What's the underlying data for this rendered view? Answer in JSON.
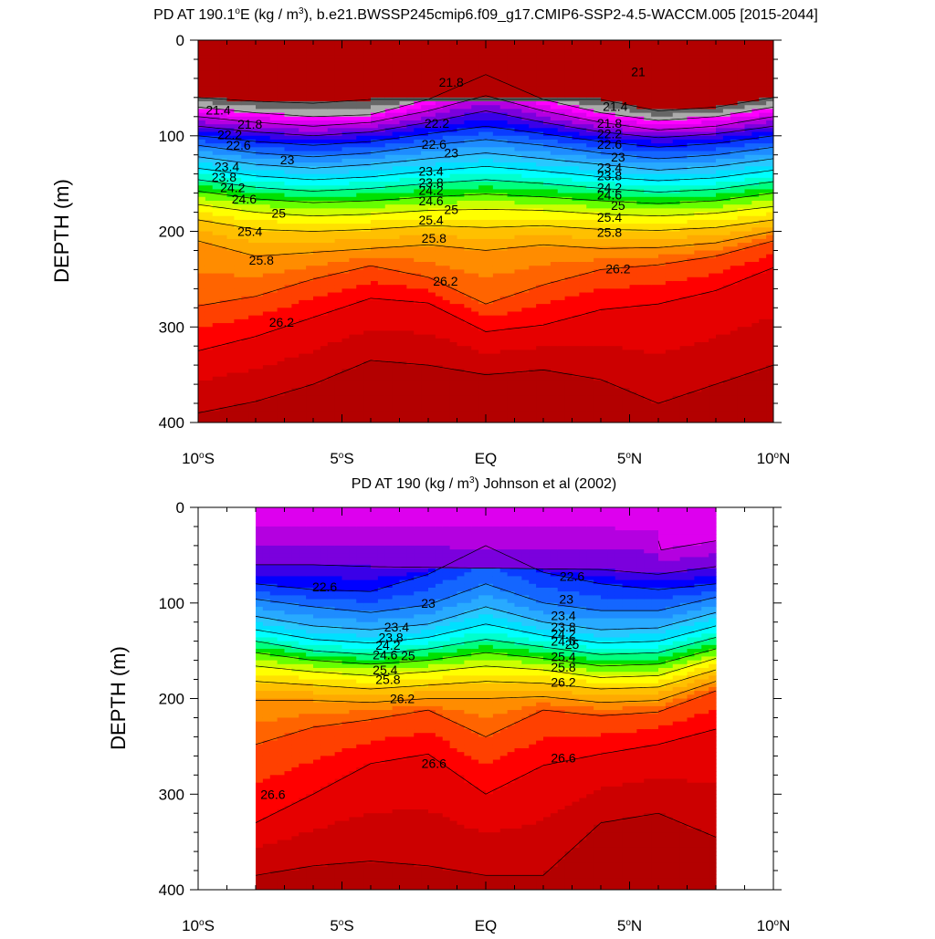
{
  "chart_data": [
    {
      "type": "contour",
      "title": "PD AT 190.1°E (kg / m³), b.e21.BWSSP245cmip6.f09_g17.CMIP6-SSP2-4.5-WACCM.005 [2015-2044]",
      "title_parts": {
        "pre": "PD AT 190.1",
        "deg": "o",
        "mid": "E (kg / m",
        "sup": "3",
        "post": "), b.e21.BWSSP245cmip6.f09_g17.CMIP6-SSP2-4.5-WACCM.005 [2015-2044]"
      },
      "xlabel": "",
      "ylabel": "DEPTH (m)",
      "xlim": [
        -10,
        10
      ],
      "ylim": [
        400,
        0
      ],
      "x_ticks": [
        {
          "value": -10,
          "num": "10",
          "hemi": "S"
        },
        {
          "value": -5,
          "num": "5",
          "hemi": "S"
        },
        {
          "value": 0,
          "num": "EQ",
          "hemi": ""
        },
        {
          "value": 5,
          "num": "5",
          "hemi": "N"
        },
        {
          "value": 10,
          "num": "10",
          "hemi": "N"
        }
      ],
      "y_ticks": [
        0,
        100,
        200,
        300,
        400
      ],
      "data_x_range": [
        -10,
        10
      ],
      "contour_interval": 0.2,
      "contour_levels": [
        21,
        21.2,
        21.4,
        21.6,
        21.8,
        22,
        22.2,
        22.4,
        22.6,
        22.8,
        23,
        23.2,
        23.4,
        23.6,
        23.8,
        24,
        24.2,
        24.4,
        24.6,
        24.8,
        25,
        25.2,
        25.4,
        25.6,
        25.8,
        26,
        26.2,
        26.4,
        26.6
      ],
      "contour_depth_x": [
        -10,
        -8,
        -6,
        -4,
        -2,
        0,
        2,
        4,
        6,
        8,
        10
      ],
      "contour_depths": [
        {
          "level": 21.0,
          "d": [
            60,
            64,
            66,
            62,
            null,
            null,
            null,
            62,
            74,
            70,
            60
          ]
        },
        {
          "level": 21.4,
          "d": [
            70,
            76,
            80,
            78,
            62,
            36,
            62,
            76,
            84,
            80,
            70
          ]
        },
        {
          "level": 21.8,
          "d": [
            80,
            86,
            90,
            86,
            74,
            58,
            74,
            86,
            94,
            90,
            80
          ]
        },
        {
          "level": 22.2,
          "d": [
            90,
            96,
            100,
            96,
            86,
            74,
            86,
            96,
            102,
            98,
            90
          ]
        },
        {
          "level": 22.6,
          "d": [
            100,
            106,
            110,
            106,
            98,
            90,
            98,
            106,
            112,
            108,
            100
          ]
        },
        {
          "level": 23.0,
          "d": [
            110,
            118,
            122,
            118,
            110,
            104,
            110,
            118,
            124,
            120,
            112
          ]
        },
        {
          "level": 23.4,
          "d": [
            122,
            130,
            134,
            130,
            124,
            118,
            124,
            130,
            136,
            132,
            124
          ]
        },
        {
          "level": 23.8,
          "d": [
            134,
            142,
            146,
            143,
            137,
            132,
            137,
            143,
            147,
            144,
            136
          ]
        },
        {
          "level": 24.2,
          "d": [
            146,
            154,
            158,
            155,
            150,
            146,
            150,
            155,
            159,
            156,
            148
          ]
        },
        {
          "level": 24.6,
          "d": [
            158,
            166,
            170,
            168,
            164,
            161,
            164,
            168,
            171,
            168,
            160
          ]
        },
        {
          "level": 25.0,
          "d": [
            172,
            180,
            184,
            182,
            178,
            177,
            178,
            182,
            184,
            181,
            174
          ]
        },
        {
          "level": 25.4,
          "d": [
            188,
            198,
            200,
            198,
            194,
            196,
            194,
            198,
            199,
            196,
            188
          ]
        },
        {
          "level": 25.8,
          "d": [
            210,
            226,
            222,
            218,
            214,
            220,
            214,
            218,
            217,
            212,
            200
          ]
        },
        {
          "level": 26.2,
          "d": [
            278,
            268,
            250,
            236,
            248,
            276,
            256,
            240,
            235,
            226,
            210
          ]
        },
        {
          "level": 26.6,
          "d": [
            325,
            310,
            290,
            270,
            275,
            305,
            298,
            282,
            276,
            262,
            238
          ]
        },
        {
          "level": 27.0,
          "d": [
            390,
            378,
            360,
            335,
            340,
            350,
            345,
            355,
            380,
            360,
            340
          ]
        }
      ],
      "contour_labels": [
        {
          "text": "21",
          "x": 5.3,
          "y": 33
        },
        {
          "text": "21.4",
          "x": -9.3,
          "y": 73
        },
        {
          "text": "21.8",
          "x": -8.2,
          "y": 88
        },
        {
          "text": "21.8",
          "x": -1.2,
          "y": 44
        },
        {
          "text": "21.4",
          "x": 4.5,
          "y": 69
        },
        {
          "text": "22.2",
          "x": -8.9,
          "y": 99
        },
        {
          "text": "22.6",
          "x": -8.6,
          "y": 110
        },
        {
          "text": "23",
          "x": -6.9,
          "y": 125
        },
        {
          "text": "23.4",
          "x": -9,
          "y": 132
        },
        {
          "text": "23.8",
          "x": -9.1,
          "y": 143
        },
        {
          "text": "24.2",
          "x": -8.8,
          "y": 154
        },
        {
          "text": "24.6",
          "x": -8.4,
          "y": 166
        },
        {
          "text": "25",
          "x": -7.2,
          "y": 181
        },
        {
          "text": "25.4",
          "x": -8.2,
          "y": 200
        },
        {
          "text": "25.8",
          "x": -7.8,
          "y": 230
        },
        {
          "text": "26.2",
          "x": -7.1,
          "y": 295
        },
        {
          "text": "22.2",
          "x": -1.7,
          "y": 87
        },
        {
          "text": "22.6",
          "x": -1.8,
          "y": 109
        },
        {
          "text": "23",
          "x": -1.2,
          "y": 118
        },
        {
          "text": "23.4",
          "x": -1.9,
          "y": 137
        },
        {
          "text": "23.8",
          "x": -1.9,
          "y": 149
        },
        {
          "text": "24.2",
          "x": -1.9,
          "y": 157
        },
        {
          "text": "24.6",
          "x": -1.9,
          "y": 168
        },
        {
          "text": "25",
          "x": -1.2,
          "y": 177
        },
        {
          "text": "25.4",
          "x": -1.9,
          "y": 188
        },
        {
          "text": "25.8",
          "x": -1.8,
          "y": 207
        },
        {
          "text": "26.2",
          "x": -1.4,
          "y": 252
        },
        {
          "text": "21.8",
          "x": 4.3,
          "y": 87
        },
        {
          "text": "22.2",
          "x": 4.3,
          "y": 98
        },
        {
          "text": "22.6",
          "x": 4.3,
          "y": 109
        },
        {
          "text": "23",
          "x": 4.6,
          "y": 122
        },
        {
          "text": "23.4",
          "x": 4.3,
          "y": 133
        },
        {
          "text": "23.8",
          "x": 4.3,
          "y": 142
        },
        {
          "text": "24.2",
          "x": 4.3,
          "y": 154
        },
        {
          "text": "24.6",
          "x": 4.3,
          "y": 162
        },
        {
          "text": "25",
          "x": 4.6,
          "y": 173
        },
        {
          "text": "25.4",
          "x": 4.3,
          "y": 185
        },
        {
          "text": "25.8",
          "x": 4.3,
          "y": 201
        },
        {
          "text": "26.2",
          "x": 4.6,
          "y": 239
        }
      ]
    },
    {
      "type": "contour",
      "title": "PD AT 190 (kg / m³) Johnson et al (2002)",
      "title_parts": {
        "pre": "PD AT 190 (kg / m",
        "sup": "3",
        "post": ") Johnson et al (2002)"
      },
      "xlabel": "",
      "ylabel": "DEPTH (m)",
      "xlim": [
        -10,
        10
      ],
      "ylim": [
        400,
        0
      ],
      "x_ticks": [
        {
          "value": -10,
          "num": "10",
          "hemi": "S"
        },
        {
          "value": -5,
          "num": "5",
          "hemi": "S"
        },
        {
          "value": 0,
          "num": "EQ",
          "hemi": ""
        },
        {
          "value": 5,
          "num": "5",
          "hemi": "N"
        },
        {
          "value": 10,
          "num": "10",
          "hemi": "N"
        }
      ],
      "y_ticks": [
        0,
        100,
        200,
        300,
        400
      ],
      "data_x_range": [
        -8,
        8
      ],
      "contour_interval": 0.2,
      "contour_levels": [
        21.8,
        22,
        22.2,
        22.4,
        22.6,
        22.8,
        23,
        23.2,
        23.4,
        23.6,
        23.8,
        24,
        24.2,
        24.4,
        24.6,
        24.8,
        25,
        25.2,
        25.4,
        25.6,
        25.8,
        26,
        26.2,
        26.4,
        26.6,
        26.8
      ],
      "contour_depth_x": [
        -8,
        -6,
        -4,
        -2,
        0,
        2,
        4,
        6,
        8
      ],
      "contour_depths": [
        {
          "level": 21.8,
          "d": [
            null,
            null,
            null,
            null,
            null,
            null,
            null,
            45,
            35
          ]
        },
        {
          "level": 22.2,
          "d": [
            60,
            60,
            62,
            null,
            null,
            null,
            65,
            70,
            62
          ]
        },
        {
          "level": 22.6,
          "d": [
            80,
            86,
            88,
            70,
            40,
            68,
            80,
            86,
            80
          ]
        },
        {
          "level": 23.0,
          "d": [
            96,
            104,
            110,
            102,
            80,
            100,
            108,
            108,
            94
          ]
        },
        {
          "level": 23.4,
          "d": [
            114,
            124,
            128,
            122,
            104,
            120,
            128,
            126,
            110
          ]
        },
        {
          "level": 23.8,
          "d": [
            128,
            138,
            142,
            136,
            122,
            134,
            142,
            140,
            124
          ]
        },
        {
          "level": 24.2,
          "d": [
            140,
            150,
            154,
            148,
            138,
            146,
            154,
            152,
            136
          ]
        },
        {
          "level": 24.6,
          "d": [
            152,
            160,
            164,
            160,
            152,
            158,
            166,
            164,
            148
          ]
        },
        {
          "level": 25.0,
          "d": [
            166,
            172,
            176,
            172,
            166,
            170,
            178,
            176,
            158
          ]
        },
        {
          "level": 25.4,
          "d": [
            182,
            186,
            190,
            186,
            182,
            184,
            190,
            188,
            170
          ]
        },
        {
          "level": 25.8,
          "d": [
            202,
            202,
            204,
            200,
            200,
            198,
            204,
            202,
            182
          ]
        },
        {
          "level": 26.2,
          "d": [
            248,
            230,
            222,
            212,
            240,
            212,
            218,
            214,
            192
          ]
        },
        {
          "level": 26.6,
          "d": [
            330,
            300,
            268,
            258,
            300,
            270,
            258,
            248,
            232
          ]
        },
        {
          "level": 27.0,
          "d": [
            385,
            375,
            370,
            375,
            385,
            385,
            330,
            320,
            345
          ]
        }
      ],
      "contour_labels": [
        {
          "text": "22.6",
          "x": -5.6,
          "y": 83
        },
        {
          "text": "22.6",
          "x": 3.0,
          "y": 72
        },
        {
          "text": "23",
          "x": -2.0,
          "y": 100
        },
        {
          "text": "23",
          "x": 2.8,
          "y": 96
        },
        {
          "text": "23.4",
          "x": -3.1,
          "y": 125
        },
        {
          "text": "23.8",
          "x": -3.3,
          "y": 136
        },
        {
          "text": "24.2",
          "x": -3.4,
          "y": 144
        },
        {
          "text": "24.6",
          "x": -3.5,
          "y": 154
        },
        {
          "text": "25",
          "x": -2.7,
          "y": 155
        },
        {
          "text": "25.4",
          "x": -3.5,
          "y": 170
        },
        {
          "text": "25.8",
          "x": -3.4,
          "y": 180
        },
        {
          "text": "26.2",
          "x": -2.9,
          "y": 200
        },
        {
          "text": "26.6",
          "x": -1.8,
          "y": 268
        },
        {
          "text": "26.6",
          "x": -7.4,
          "y": 300
        },
        {
          "text": "26.6",
          "x": 2.7,
          "y": 262
        },
        {
          "text": "23.4",
          "x": 2.7,
          "y": 113
        },
        {
          "text": "23.8",
          "x": 2.7,
          "y": 125
        },
        {
          "text": "24.2",
          "x": 2.7,
          "y": 132
        },
        {
          "text": "24.6",
          "x": 2.7,
          "y": 140
        },
        {
          "text": "25",
          "x": 3.0,
          "y": 143
        },
        {
          "text": "25.4",
          "x": 2.7,
          "y": 156
        },
        {
          "text": "25.8",
          "x": 2.7,
          "y": 167
        },
        {
          "text": "26.2",
          "x": 2.7,
          "y": 183
        }
      ]
    }
  ],
  "palette": {
    "21.0": "#666666",
    "21.2": "#aaaaaa",
    "21.4": "#ff00ff",
    "21.6": "#dd00ee",
    "21.8": "#b400e0",
    "22.0": "#7b00dd",
    "22.2": "#3a00e8",
    "22.4": "#0000ff",
    "22.6": "#0a3cff",
    "22.8": "#1466ff",
    "23.0": "#1e8cff",
    "23.2": "#28aaff",
    "23.4": "#28c8ff",
    "23.6": "#00e0ff",
    "23.8": "#00ffff",
    "24.0": "#00ffcc",
    "24.2": "#00ff7f",
    "24.4": "#00e000",
    "24.6": "#66ff00",
    "24.8": "#ccff00",
    "25.0": "#ffff00",
    "25.2": "#ffe000",
    "25.4": "#ffc000",
    "25.6": "#ffaa00",
    "25.8": "#ff8c00",
    "26.0": "#ff6400",
    "26.2": "#ff4000",
    "26.4": "#ff0000",
    "26.6": "#e60000",
    "26.8": "#cc0000",
    "27.0": "#b30000"
  }
}
